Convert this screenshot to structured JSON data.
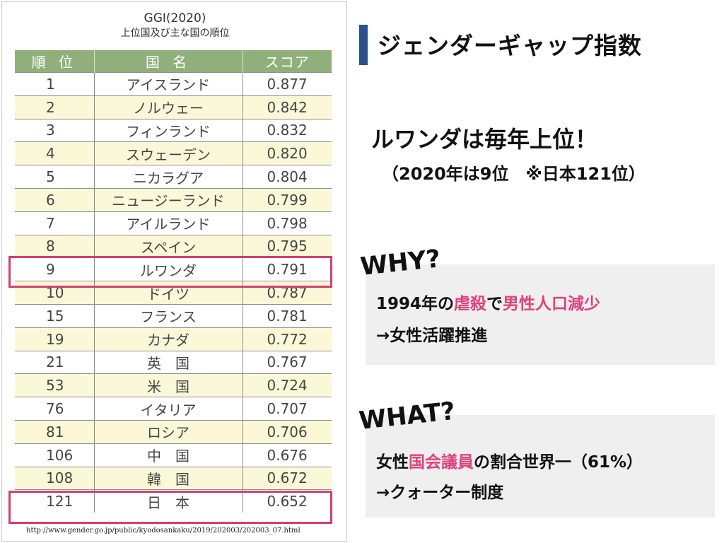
{
  "table_panel": {
    "title": "GGI(2020)",
    "subtitle": "上位国及び主な国の順位",
    "headers": [
      "順 位",
      "国 名",
      "スコア"
    ],
    "rows": [
      {
        "rank": "1",
        "country": "アイスランド",
        "score": "0.877"
      },
      {
        "rank": "2",
        "country": "ノルウェー",
        "score": "0.842"
      },
      {
        "rank": "3",
        "country": "フィンランド",
        "score": "0.832"
      },
      {
        "rank": "4",
        "country": "スウェーデン",
        "score": "0.820"
      },
      {
        "rank": "5",
        "country": "ニカラグア",
        "score": "0.804"
      },
      {
        "rank": "6",
        "country": "ニュージーランド",
        "score": "0.799"
      },
      {
        "rank": "7",
        "country": "アイルランド",
        "score": "0.798"
      },
      {
        "rank": "8",
        "country": "スペイン",
        "score": "0.795"
      },
      {
        "rank": "9",
        "country": "ルワンダ",
        "score": "0.791",
        "highlight": true
      },
      {
        "rank": "10",
        "country": "ドイツ",
        "score": "0.787"
      },
      {
        "rank": "15",
        "country": "フランス",
        "score": "0.781"
      },
      {
        "rank": "19",
        "country": "カナダ",
        "score": "0.772"
      },
      {
        "rank": "21",
        "country": "英　国",
        "score": "0.767"
      },
      {
        "rank": "53",
        "country": "米　国",
        "score": "0.724"
      },
      {
        "rank": "76",
        "country": "イタリア",
        "score": "0.707"
      },
      {
        "rank": "81",
        "country": "ロシア",
        "score": "0.706"
      },
      {
        "rank": "106",
        "country": "中　国",
        "score": "0.676"
      },
      {
        "rank": "108",
        "country": "韓　国",
        "score": "0.672"
      },
      {
        "rank": "121",
        "country": "日　本",
        "score": "0.652",
        "highlight": true
      }
    ],
    "source_url": "http://www.gender.go.jp/public/kyodosankaku/2019/202003/202003_07.html"
  },
  "slide": {
    "heading": "ジェンダーギャップ指数",
    "claim": "ルワンダは毎年上位！",
    "note": "（2020年は9位　※日本121位）",
    "why": {
      "tag": "WHY?",
      "line1": {
        "pre": "1994年の",
        "h1": "虐殺",
        "mid": "で",
        "h2": "男性人口減少"
      },
      "line2": "→女性活躍推進"
    },
    "what": {
      "tag": "WHAT?",
      "line1": {
        "pre": "女性",
        "h1": "国会議員",
        "post": "の割合世界一（61%）"
      },
      "line2": "→クォーター制度"
    }
  },
  "colors": {
    "accent_bar": "#2c4f8d",
    "header_green": "#8fb07a",
    "highlight_pink": "#d0406e",
    "text_pink": "#e0417b"
  }
}
